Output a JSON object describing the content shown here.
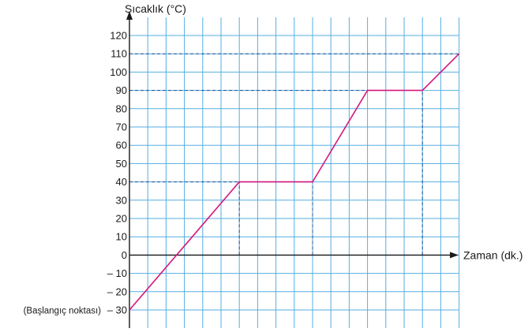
{
  "chart_data": {
    "type": "line",
    "ylabel": "Sıcaklık (°C)",
    "xlabel": "Zaman (dk.)",
    "start_note": "(Başlangıç noktası)",
    "ylim": [
      -30,
      120
    ],
    "y_ticks": [
      120,
      110,
      100,
      90,
      80,
      70,
      60,
      50,
      40,
      30,
      20,
      10,
      0,
      -10,
      -20,
      -30
    ],
    "y_tick_labels": [
      "120",
      "110",
      "100",
      "90",
      "80",
      "70",
      "60",
      "50",
      "40",
      "30",
      "20",
      "10",
      "0",
      "– 10",
      "– 20",
      "– 30"
    ],
    "x_grid_columns": 18,
    "grid": true,
    "grid_color": "#55aee0",
    "line_color": "#d4177e",
    "guide_color": "#2a4f8a",
    "series": [
      {
        "x": [
          0,
          6,
          10,
          13,
          16,
          18
        ],
        "y": [
          -30,
          40,
          40,
          90,
          90,
          110
        ]
      }
    ],
    "guides": [
      {
        "kind": "horizontal",
        "y": 40,
        "x_to": 6
      },
      {
        "kind": "horizontal",
        "y": 90,
        "x_to": 13
      },
      {
        "kind": "horizontal",
        "y": 110,
        "x_to": 18
      },
      {
        "kind": "vertical",
        "x": 6,
        "y_from": 0,
        "y_to": 40
      },
      {
        "kind": "vertical",
        "x": 10,
        "y_from": 0,
        "y_to": 40
      },
      {
        "kind": "vertical",
        "x": 16,
        "y_from": 0,
        "y_to": 90
      }
    ]
  }
}
